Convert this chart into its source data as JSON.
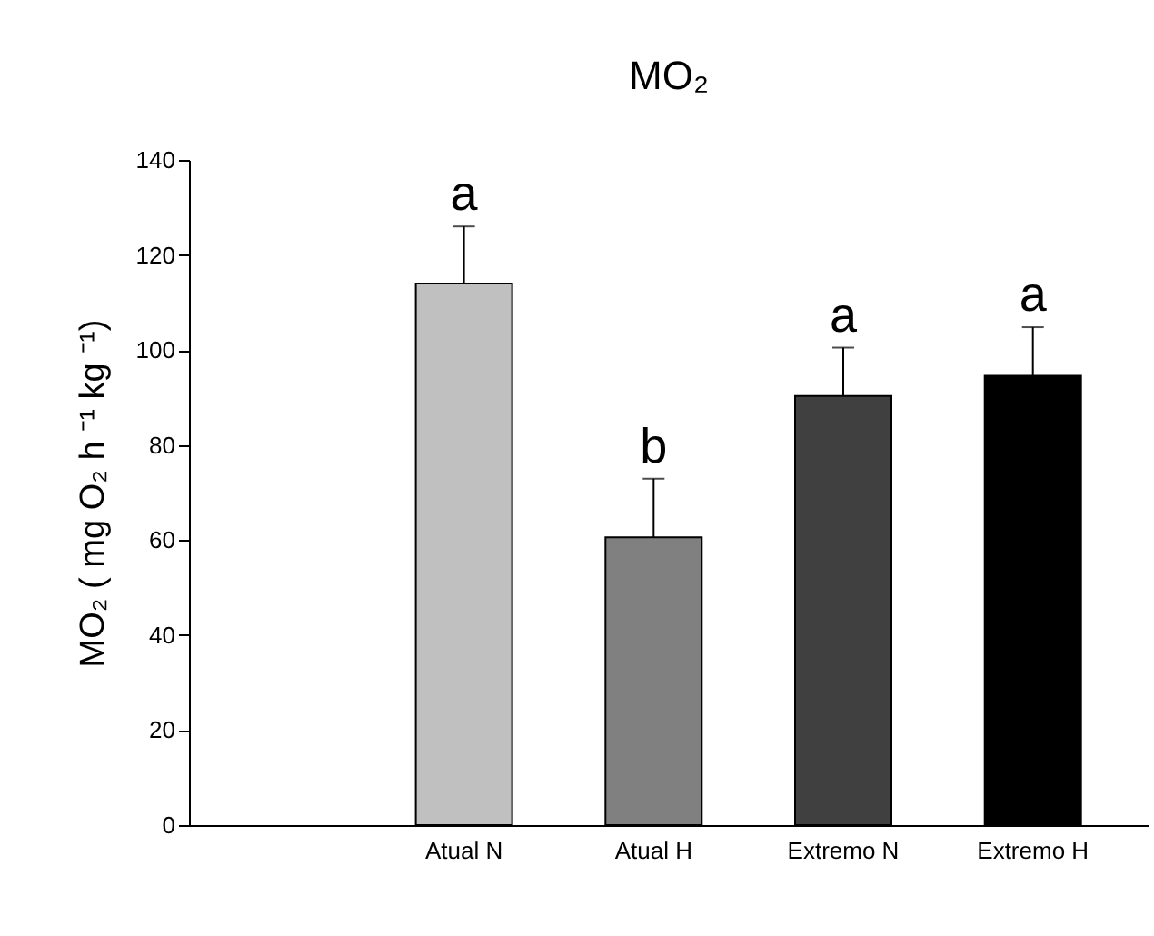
{
  "chart_data": {
    "type": "bar",
    "title": "MO₂",
    "ylabel": "MO₂ ( mg O₂ h ⁻¹ kg ⁻¹)",
    "categories": [
      "Atual N",
      "Atual H",
      "Extremo N",
      "Extremo H"
    ],
    "values": [
      114,
      60.6,
      90.3,
      94.6
    ],
    "colors": [
      "#c0c0c0",
      "#808080",
      "#404040",
      "#000000"
    ],
    "errors": [
      [
        114,
        126
      ],
      [
        60.6,
        72.9
      ],
      [
        90.3,
        100.5
      ],
      [
        94.6,
        104.8
      ]
    ],
    "ylim": [
      0,
      140
    ],
    "yticks": [
      0,
      20,
      40,
      60,
      80,
      100,
      120,
      140
    ],
    "grid": false,
    "legend": false,
    "annotations": [
      {
        "text": "a",
        "x": "Atual N",
        "y": 126
      },
      {
        "text": "b",
        "x": "Atual H",
        "y": 72.9
      },
      {
        "text": "a",
        "x": "Extremo N",
        "y": 100.5
      },
      {
        "text": "a",
        "x": "Extremo H",
        "y": 104.8
      }
    ]
  }
}
